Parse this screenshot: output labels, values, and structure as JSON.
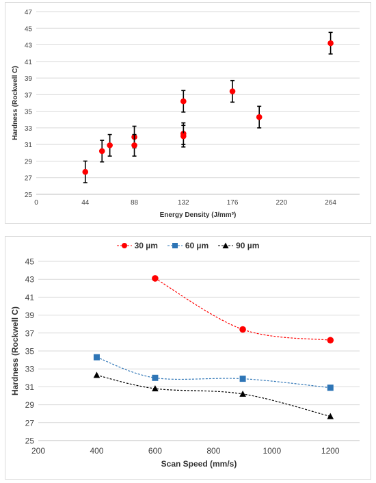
{
  "chart_data": [
    {
      "type": "scatter",
      "title": "",
      "xlabel": "Energy  Density (J/mm³)",
      "ylabel": "Hardness (Rockwell C)",
      "xticks": [
        0,
        44,
        88,
        132,
        176,
        220,
        264
      ],
      "yticks": [
        25,
        27,
        29,
        31,
        33,
        35,
        37,
        39,
        41,
        43,
        45,
        47
      ],
      "xlim": [
        0,
        290
      ],
      "ylim": [
        25,
        47
      ],
      "grid": "horizontal",
      "marker_color": "#ff0000",
      "points": [
        {
          "x": 44,
          "y": 27.7,
          "err": 1.3
        },
        {
          "x": 59,
          "y": 30.2,
          "err": 1.3
        },
        {
          "x": 66,
          "y": 30.9,
          "err": 1.3
        },
        {
          "x": 88,
          "y": 31.9,
          "err": 1.3
        },
        {
          "x": 88,
          "y": 30.9,
          "err": 1.3
        },
        {
          "x": 132,
          "y": 36.2,
          "err": 1.3
        },
        {
          "x": 132,
          "y": 32.3,
          "err": 1.3
        },
        {
          "x": 132,
          "y": 32.0,
          "err": 1.3
        },
        {
          "x": 176,
          "y": 37.4,
          "err": 1.3
        },
        {
          "x": 200,
          "y": 34.3,
          "err": 1.3
        },
        {
          "x": 264,
          "y": 43.2,
          "err": 1.3
        }
      ]
    },
    {
      "type": "line",
      "title": "",
      "xlabel": "Scan Speed (mm/s)",
      "ylabel": "Hardness (Rockwell C)",
      "xticks": [
        200,
        400,
        600,
        800,
        1000,
        1200
      ],
      "yticks": [
        25,
        27,
        29,
        31,
        33,
        35,
        37,
        39,
        41,
        43,
        45
      ],
      "xlim": [
        200,
        1300
      ],
      "ylim": [
        25,
        45
      ],
      "grid": "horizontal",
      "legend_position": "top",
      "series": [
        {
          "name": "30 µm",
          "color": "#ff0000",
          "marker": "circle",
          "x": [
            600,
            900,
            1200
          ],
          "y": [
            43.1,
            37.4,
            36.2
          ]
        },
        {
          "name": "60 µm",
          "color": "#2e75b6",
          "marker": "square",
          "x": [
            400,
            600,
            900,
            1200
          ],
          "y": [
            34.3,
            32.0,
            31.9,
            30.9
          ]
        },
        {
          "name": "90 µm",
          "color": "#000000",
          "marker": "triangle",
          "x": [
            400,
            600,
            900,
            1200
          ],
          "y": [
            32.3,
            30.8,
            30.2,
            27.7
          ]
        }
      ]
    }
  ]
}
